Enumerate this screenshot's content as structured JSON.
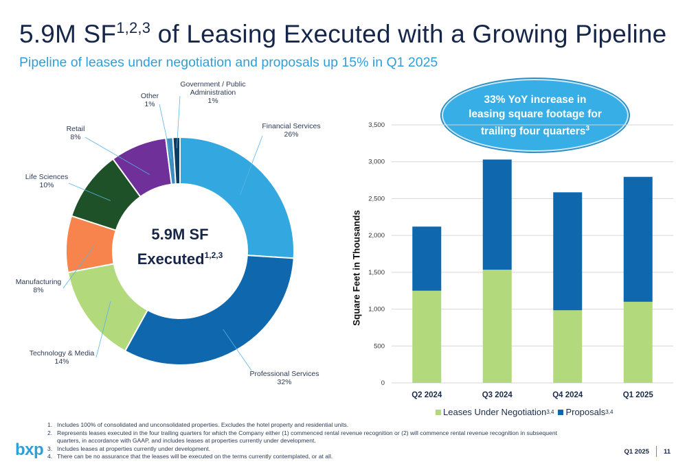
{
  "header": {
    "title": "5.9M SF",
    "title_sup": "1,2,3",
    "title_rest": " of Leasing Executed with a Growing Pipeline",
    "subtitle": "Pipeline of leases under negotiation and proposals up 15% in Q1 2025"
  },
  "donut_center": {
    "line1": "5.9M SF",
    "line2": "Executed",
    "sup": "1,2,3"
  },
  "callout": {
    "text": "33% YoY increase in leasing square footage for trailing four quarters",
    "sup": "3"
  },
  "chart_data": [
    {
      "type": "pie",
      "categories": [
        "Financial Services",
        "Professional Services",
        "Technology & Media",
        "Manufacturing",
        "Life Sciences",
        "Retail",
        "Other",
        "Government / Public Administration"
      ],
      "values": [
        26,
        32,
        14,
        8,
        10,
        8,
        1,
        1
      ],
      "labels": [
        "26%",
        "32%",
        "14%",
        "8%",
        "10%",
        "8%",
        "1%",
        "1%"
      ],
      "colors": [
        "#33a7df",
        "#0f68ad",
        "#b3d97d",
        "#f7834d",
        "#1f5128",
        "#6f3099",
        "#3d8fbf",
        "#0d3b63"
      ]
    },
    {
      "type": "bar",
      "stacked": true,
      "categories": [
        "Q2 2024",
        "Q3 2024",
        "Q4 2024",
        "Q1 2025"
      ],
      "series": [
        {
          "name": "Leases Under Negotiation",
          "sup": "3,4",
          "values": [
            1250,
            1535,
            985,
            1100
          ],
          "color": "#b3d97d"
        },
        {
          "name": "Proposals",
          "sup": "3,4",
          "values": [
            870,
            1495,
            1600,
            1695
          ],
          "color": "#0f68ad"
        }
      ],
      "ylabel": "Square Feet in Thousands",
      "ylim": [
        0,
        3500
      ],
      "yticks": [
        "0",
        "500",
        "1,000",
        "1,500",
        "2,000",
        "2,500",
        "3,000",
        "3,500"
      ],
      "grid": true,
      "legend": "bottom"
    }
  ],
  "footnotes": [
    {
      "num": "1.",
      "text": "Includes 100% of consolidated and unconsolidated properties. Excludes the hotel property and residential units."
    },
    {
      "num": "2.",
      "text": "Represents leases executed in the four trailing quarters for which the Company either (1) commenced rental revenue recognition or (2) will commence rental revenue recognition in subsequent quarters, in accordance with GAAP, and includes leases at properties currently under development."
    },
    {
      "num": "3.",
      "text": "Includes leases at properties currently under development."
    },
    {
      "num": "4.",
      "text": "There can be no assurance that the leases will be executed on the terms currently contemplated, or at all."
    }
  ],
  "footer": {
    "logo": "bxp",
    "period": "Q1 2025",
    "page": "11"
  }
}
